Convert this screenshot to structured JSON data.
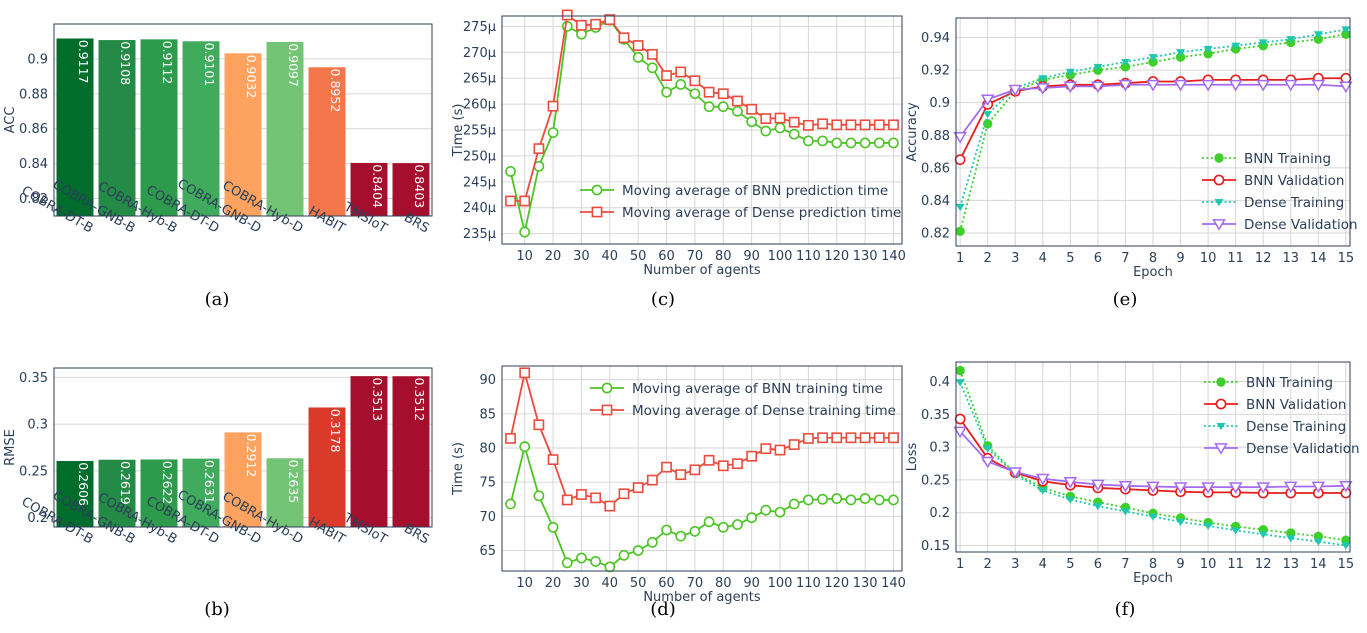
{
  "chart_data": [
    {
      "panel": "(a)",
      "type": "bar",
      "caption": "(a)",
      "ylabel": "ACC",
      "ylim": [
        0.81,
        0.92
      ],
      "yticks": [
        0.82,
        0.84,
        0.86,
        0.88,
        0.9
      ],
      "ytick_labels": [
        "0.82",
        "0.84",
        "0.86",
        "0.88",
        "0.9"
      ],
      "categories": [
        "COBRA-DT-B",
        "COBRA-GNB-B",
        "COBRA-Hyb-B",
        "COBRA-DT-D",
        "COBRA-GNB-D",
        "COBRA-Hyb-D",
        "HABIT",
        "TMSIoT",
        "BRS"
      ],
      "values": [
        0.9117,
        0.9108,
        0.9112,
        0.9101,
        0.9032,
        0.9097,
        0.8952,
        0.8404,
        0.8403
      ],
      "value_labels": [
        "0.9117",
        "0.9108",
        "0.9112",
        "0.9101",
        "0.9032",
        "0.9097",
        "0.8952",
        "0.8404",
        "0.8403"
      ],
      "colors": [
        "#006d2c",
        "#238b45",
        "#2e9a4c",
        "#41ab5d",
        "#fda35f",
        "#74c476",
        "#f4764b",
        "#a50f2d",
        "#a50f2d"
      ],
      "grid": true
    },
    {
      "panel": "(b)",
      "type": "bar",
      "caption": "(b)",
      "ylabel": "RMSE",
      "ylim": [
        0.19,
        0.36
      ],
      "yticks": [
        0.2,
        0.25,
        0.3,
        0.35
      ],
      "ytick_labels": [
        "0.2",
        "0.25",
        "0.3",
        "0.35"
      ],
      "categories": [
        "COBRA-DT-B",
        "COBRA-GNB-B",
        "COBRA-Hyb-B",
        "COBRA-DT-D",
        "COBRA-GNB-D",
        "COBRA-Hyb-D",
        "HABIT",
        "TMSIoT",
        "BRS"
      ],
      "values": [
        0.2606,
        0.2619,
        0.2622,
        0.2631,
        0.2912,
        0.2635,
        0.3178,
        0.3513,
        0.3512
      ],
      "value_labels": [
        "0.2606",
        "0.2619",
        "0.2622",
        "0.2631",
        "0.2912",
        "0.2635",
        "0.3178",
        "0.3513",
        "0.3512"
      ],
      "colors": [
        "#006d2c",
        "#238b45",
        "#2e9a4c",
        "#41ab5d",
        "#fda35f",
        "#74c476",
        "#db3a2a",
        "#a50f2d",
        "#a50f2d"
      ],
      "grid": true
    },
    {
      "panel": "(c)",
      "type": "line",
      "caption": "(c)",
      "xlabel": "Number of agents",
      "ylabel": "Time (s)",
      "xlim": [
        2,
        143
      ],
      "ylim": [
        233,
        277
      ],
      "xticks": [
        10,
        20,
        30,
        40,
        50,
        60,
        70,
        80,
        90,
        100,
        110,
        120,
        130,
        140
      ],
      "xtick_labels": [
        "10",
        "20",
        "30",
        "40",
        "50",
        "60",
        "70",
        "80",
        "90",
        "100",
        "110",
        "120",
        "130",
        "140"
      ],
      "yticks": [
        235,
        240,
        245,
        250,
        255,
        260,
        265,
        270,
        275
      ],
      "ytick_labels": [
        "235μ",
        "240μ",
        "245μ",
        "250μ",
        "255μ",
        "260μ",
        "265μ",
        "270μ",
        "275μ"
      ],
      "legend_position": "bottom-right",
      "x": [
        5,
        10,
        15,
        20,
        25,
        30,
        35,
        40,
        45,
        50,
        55,
        60,
        65,
        70,
        75,
        80,
        85,
        90,
        95,
        100,
        105,
        110,
        115,
        120,
        125,
        130,
        135,
        140
      ],
      "series": [
        {
          "name": "Moving average of BNN prediction time",
          "color": "#4cc425",
          "marker": "circle",
          "values": [
            247,
            235.3,
            248,
            254.5,
            275,
            273.5,
            274.8,
            276.2,
            272.5,
            269,
            267,
            262.3,
            263.8,
            262,
            259.5,
            259.5,
            258.6,
            256.6,
            254.8,
            255.4,
            254.2,
            252.9,
            252.9,
            252.5,
            252.5,
            252.5,
            252.5,
            252.5
          ]
        },
        {
          "name": "Moving average of Dense prediction time",
          "color": "#ea4b3c",
          "marker": "square",
          "values": [
            241.3,
            241.3,
            251.4,
            259.6,
            277.2,
            275.2,
            275.4,
            276.3,
            272.8,
            271.3,
            269.6,
            265.5,
            266.2,
            264.5,
            262.3,
            262.0,
            260.6,
            259.0,
            257.2,
            257.3,
            256.5,
            255.9,
            256.2,
            256.0,
            256.0,
            256.0,
            256.0,
            256.0
          ]
        }
      ],
      "grid": true
    },
    {
      "panel": "(d)",
      "type": "line",
      "caption": "(d)",
      "xlabel": "Number of agents",
      "ylabel": "Time (s)",
      "xlim": [
        2,
        143
      ],
      "ylim": [
        62,
        92
      ],
      "xticks": [
        10,
        20,
        30,
        40,
        50,
        60,
        70,
        80,
        90,
        100,
        110,
        120,
        130,
        140
      ],
      "xtick_labels": [
        "10",
        "20",
        "30",
        "40",
        "50",
        "60",
        "70",
        "80",
        "90",
        "100",
        "110",
        "120",
        "130",
        "140"
      ],
      "yticks": [
        65,
        70,
        75,
        80,
        85,
        90
      ],
      "ytick_labels": [
        "65",
        "70",
        "75",
        "80",
        "85",
        "90"
      ],
      "legend_position": "top-right",
      "x": [
        5,
        10,
        15,
        20,
        25,
        30,
        35,
        40,
        45,
        50,
        55,
        60,
        65,
        70,
        75,
        80,
        85,
        90,
        95,
        100,
        105,
        110,
        115,
        120,
        125,
        130,
        135,
        140
      ],
      "series": [
        {
          "name": "Moving average of BNN training time",
          "color": "#4cc425",
          "marker": "circle",
          "values": [
            71.8,
            80.2,
            73.0,
            68.4,
            63.2,
            63.9,
            63.4,
            62.6,
            64.3,
            65.0,
            66.2,
            68.0,
            67.1,
            67.8,
            69.2,
            68.4,
            68.8,
            69.8,
            70.9,
            70.6,
            71.8,
            72.4,
            72.5,
            72.6,
            72.4,
            72.6,
            72.4,
            72.4
          ]
        },
        {
          "name": "Moving average of Dense training time",
          "color": "#ea4b3c",
          "marker": "square",
          "values": [
            81.4,
            91.0,
            83.4,
            78.3,
            72.4,
            73.2,
            72.7,
            71.5,
            73.3,
            74.2,
            75.3,
            77.2,
            76.1,
            76.8,
            78.2,
            77.4,
            77.7,
            78.8,
            79.9,
            79.7,
            80.5,
            81.4,
            81.5,
            81.5,
            81.5,
            81.5,
            81.5,
            81.5
          ]
        }
      ],
      "grid": true
    },
    {
      "panel": "(e)",
      "type": "line",
      "caption": "(e)",
      "xlabel": "Epoch",
      "ylabel": "Accuracy",
      "xlim": [
        0.85,
        15.15
      ],
      "ylim": [
        0.812,
        0.952
      ],
      "xticks": [
        1,
        2,
        3,
        4,
        5,
        6,
        7,
        8,
        9,
        10,
        11,
        12,
        13,
        14,
        15
      ],
      "xtick_labels": [
        "1",
        "2",
        "3",
        "4",
        "5",
        "6",
        "7",
        "8",
        "9",
        "10",
        "11",
        "12",
        "13",
        "14",
        "15"
      ],
      "yticks": [
        0.82,
        0.84,
        0.86,
        0.88,
        0.9,
        0.92,
        0.94
      ],
      "ytick_labels": [
        "0.82",
        "0.84",
        "0.86",
        "0.88",
        "0.9",
        "0.92",
        "0.94"
      ],
      "legend_position": "bottom-right",
      "x": [
        1,
        2,
        3,
        4,
        5,
        6,
        7,
        8,
        9,
        10,
        11,
        12,
        13,
        14,
        15
      ],
      "series": [
        {
          "name": "BNN Training",
          "color": "#3ecf2a",
          "marker": "dot",
          "dash": true,
          "values": [
            0.821,
            0.887,
            0.907,
            0.914,
            0.917,
            0.92,
            0.922,
            0.925,
            0.928,
            0.93,
            0.933,
            0.935,
            0.937,
            0.939,
            0.942
          ]
        },
        {
          "name": "BNN Validation",
          "color": "#e81c1c",
          "marker": "circle-open",
          "dash": false,
          "values": [
            0.865,
            0.899,
            0.907,
            0.91,
            0.911,
            0.911,
            0.912,
            0.913,
            0.913,
            0.914,
            0.914,
            0.914,
            0.914,
            0.915,
            0.915
          ]
        },
        {
          "name": "Dense Training",
          "color": "#1fc7b0",
          "marker": "triangle",
          "dash": true,
          "values": [
            0.836,
            0.893,
            0.909,
            0.915,
            0.919,
            0.922,
            0.925,
            0.928,
            0.931,
            0.933,
            0.935,
            0.937,
            0.939,
            0.942,
            0.945
          ]
        },
        {
          "name": "Dense Validation",
          "color": "#a26bf0",
          "marker": "triangle-open",
          "dash": false,
          "values": [
            0.879,
            0.902,
            0.908,
            0.909,
            0.91,
            0.91,
            0.911,
            0.911,
            0.911,
            0.911,
            0.911,
            0.911,
            0.911,
            0.911,
            0.91
          ]
        }
      ],
      "grid": true
    },
    {
      "panel": "(f)",
      "type": "line",
      "caption": "(f)",
      "xlabel": "Epoch",
      "ylabel": "Loss",
      "xlim": [
        0.85,
        15.15
      ],
      "ylim": [
        0.14,
        0.43
      ],
      "xticks": [
        1,
        2,
        3,
        4,
        5,
        6,
        7,
        8,
        9,
        10,
        11,
        12,
        13,
        14,
        15
      ],
      "xtick_labels": [
        "1",
        "2",
        "3",
        "4",
        "5",
        "6",
        "7",
        "8",
        "9",
        "10",
        "11",
        "12",
        "13",
        "14",
        "15"
      ],
      "yticks": [
        0.15,
        0.2,
        0.25,
        0.3,
        0.35,
        0.4
      ],
      "ytick_labels": [
        "0.15",
        "0.2",
        "0.25",
        "0.3",
        "0.35",
        "0.4"
      ],
      "legend_position": "top-right",
      "x": [
        1,
        2,
        3,
        4,
        5,
        6,
        7,
        8,
        9,
        10,
        11,
        12,
        13,
        14,
        15
      ],
      "series": [
        {
          "name": "BNN Training",
          "color": "#3ecf2a",
          "marker": "dot",
          "dash": true,
          "values": [
            0.417,
            0.302,
            0.26,
            0.238,
            0.225,
            0.216,
            0.208,
            0.199,
            0.192,
            0.185,
            0.179,
            0.174,
            0.169,
            0.164,
            0.158
          ]
        },
        {
          "name": "BNN Validation",
          "color": "#e81c1c",
          "marker": "circle-open",
          "dash": false,
          "values": [
            0.343,
            0.283,
            0.261,
            0.248,
            0.242,
            0.238,
            0.236,
            0.234,
            0.232,
            0.231,
            0.231,
            0.23,
            0.23,
            0.23,
            0.23
          ]
        },
        {
          "name": "Dense Training",
          "color": "#1fc7b0",
          "marker": "triangle",
          "dash": true,
          "values": [
            0.399,
            0.298,
            0.258,
            0.234,
            0.22,
            0.21,
            0.202,
            0.194,
            0.186,
            0.18,
            0.173,
            0.167,
            0.161,
            0.156,
            0.15
          ]
        },
        {
          "name": "Dense Validation",
          "color": "#a26bf0",
          "marker": "triangle-open",
          "dash": false,
          "values": [
            0.324,
            0.278,
            0.262,
            0.252,
            0.247,
            0.243,
            0.241,
            0.24,
            0.239,
            0.239,
            0.239,
            0.239,
            0.24,
            0.24,
            0.241
          ]
        }
      ],
      "grid": true
    }
  ]
}
